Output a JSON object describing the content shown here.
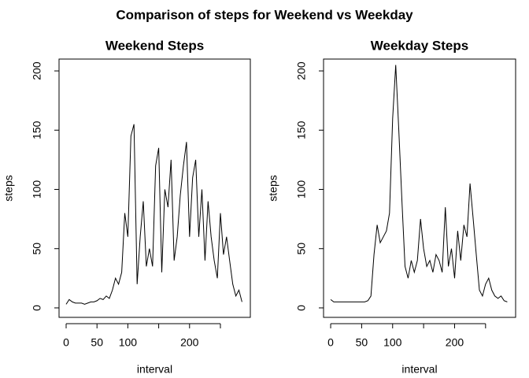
{
  "title": "Comparison of steps for Weekend vs Weekday",
  "chart_data": [
    {
      "type": "line",
      "title": "Weekend Steps",
      "x_label": "interval",
      "y_label": "steps",
      "x": [
        0,
        5,
        10,
        15,
        20,
        25,
        30,
        35,
        40,
        45,
        50,
        55,
        60,
        65,
        70,
        75,
        80,
        85,
        90,
        95,
        100,
        105,
        110,
        115,
        120,
        125,
        130,
        135,
        140,
        145,
        150,
        155,
        160,
        165,
        170,
        175,
        180,
        185,
        190,
        195,
        200,
        205,
        210,
        215,
        220,
        225,
        230,
        235,
        240,
        245,
        250,
        255,
        260,
        265,
        270,
        275,
        280,
        285
      ],
      "series": [
        {
          "name": "steps",
          "color": "#000000",
          "values": [
            3,
            7,
            5,
            4,
            4,
            4,
            3,
            4,
            5,
            5,
            6,
            8,
            7,
            10,
            8,
            15,
            25,
            20,
            30,
            80,
            60,
            145,
            155,
            20,
            60,
            90,
            35,
            50,
            35,
            120,
            135,
            30,
            100,
            85,
            125,
            40,
            60,
            95,
            120,
            140,
            60,
            110,
            125,
            60,
            100,
            40,
            90,
            60,
            40,
            25,
            80,
            45,
            60,
            40,
            20,
            10,
            15,
            5
          ]
        }
      ],
      "xlim": [
        -11.5,
        298.5
      ],
      "ylim": [
        -8,
        210
      ],
      "xticks": [
        0,
        50,
        100,
        {
          "value": 150,
          "label": null
        },
        200,
        {
          "value": 250,
          "label": null
        }
      ],
      "yticks": [
        0,
        50,
        100,
        150,
        200
      ]
    },
    {
      "type": "line",
      "title": "Weekday Steps",
      "x_label": "interval",
      "y_label": "steps",
      "x": [
        0,
        5,
        10,
        15,
        20,
        25,
        30,
        35,
        40,
        45,
        50,
        55,
        60,
        65,
        70,
        75,
        80,
        85,
        90,
        95,
        100,
        105,
        110,
        115,
        120,
        125,
        130,
        135,
        140,
        145,
        150,
        155,
        160,
        165,
        170,
        175,
        180,
        185,
        190,
        195,
        200,
        205,
        210,
        215,
        220,
        225,
        230,
        235,
        240,
        245,
        250,
        255,
        260,
        265,
        270,
        275,
        280,
        285
      ],
      "series": [
        {
          "name": "steps",
          "color": "#000000",
          "values": [
            7,
            5,
            5,
            5,
            5,
            5,
            5,
            5,
            5,
            5,
            5,
            5,
            6,
            10,
            45,
            70,
            55,
            60,
            65,
            80,
            160,
            205,
            150,
            90,
            35,
            25,
            40,
            30,
            40,
            75,
            50,
            35,
            40,
            30,
            45,
            40,
            30,
            85,
            35,
            50,
            25,
            65,
            40,
            70,
            60,
            105,
            75,
            45,
            15,
            10,
            20,
            25,
            15,
            10,
            8,
            10,
            6,
            5
          ]
        }
      ],
      "xlim": [
        -11.5,
        298.5
      ],
      "ylim": [
        -8,
        210
      ],
      "xticks": [
        0,
        50,
        100,
        {
          "value": 150,
          "label": null
        },
        200,
        {
          "value": 250,
          "label": null
        }
      ],
      "yticks": [
        0,
        50,
        100,
        150,
        200
      ]
    }
  ]
}
